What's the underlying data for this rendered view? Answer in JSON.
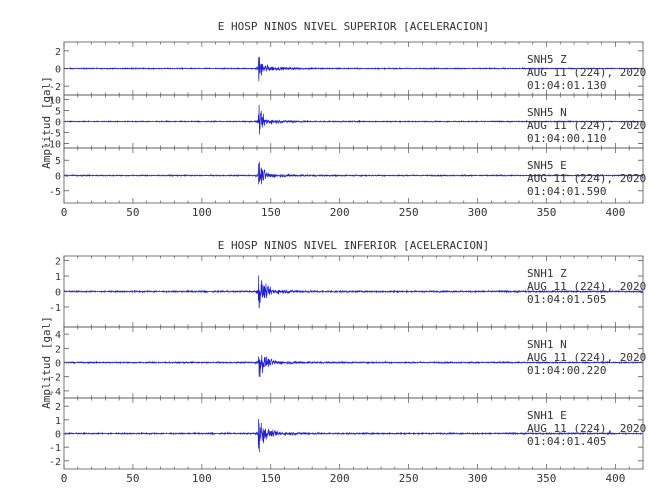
{
  "chart_data": [
    {
      "type": "line",
      "title": "E HOSP NINOS NIVEL SUPERIOR [ACELERACION]",
      "ylabel": "Amplitud [gal]",
      "xlabel": "",
      "xlim": [
        0,
        420
      ],
      "xticks": [
        "0",
        "50",
        "100",
        "150",
        "200",
        "250",
        "300",
        "350",
        "400"
      ],
      "grid": false,
      "series_color": "#1f1fd6",
      "panels": [
        {
          "station": "SNH5   Z",
          "date": "AUG 11 (224), 2020",
          "time": "01:04:01.130",
          "ylim": [
            -3,
            3
          ],
          "yticks": [
            "-2",
            "0",
            "2"
          ],
          "peak": 2.6,
          "noise": 0.09
        },
        {
          "station": "SNH5   N",
          "date": "AUG 11 (224), 2020",
          "time": "01:04:00.110",
          "ylim": [
            -12,
            12
          ],
          "yticks": [
            "-10",
            "-5",
            "0",
            "5",
            "10"
          ],
          "peak": 9.5,
          "noise": 0.35
        },
        {
          "station": "SNH5   E",
          "date": "AUG 11 (224), 2020",
          "time": "01:04:01.590",
          "ylim": [
            -9,
            9
          ],
          "yticks": [
            "-5",
            "0",
            "5"
          ],
          "peak": 7.0,
          "noise": 0.3
        }
      ]
    },
    {
      "type": "line",
      "title": "E HOSP NINOS NIVEL INFERIOR [ACELERACION]",
      "ylabel": "Amplitud [gal]",
      "xlabel": "",
      "xlim": [
        0,
        420
      ],
      "xticks": [
        "0",
        "50",
        "100",
        "150",
        "200",
        "250",
        "300",
        "350",
        "400"
      ],
      "grid": false,
      "series_color": "#1f1fd6",
      "panels": [
        {
          "station": "SNH1   Z",
          "date": "AUG 11 (224), 2020",
          "time": "01:04:01.505",
          "ylim": [
            -2.3,
            2.3
          ],
          "yticks": [
            "-1",
            "0",
            "1",
            "2"
          ],
          "peak": 2.0,
          "noise": 0.08
        },
        {
          "station": "SNH1   N",
          "date": "AUG 11 (224), 2020",
          "time": "01:04:00.220",
          "ylim": [
            -5,
            5
          ],
          "yticks": [
            "-4",
            "-2",
            "0",
            "2",
            "4"
          ],
          "peak": 4.0,
          "noise": 0.15
        },
        {
          "station": "SNH1   E",
          "date": "AUG 11 (224), 2020",
          "time": "01:04:01.405",
          "ylim": [
            -2.6,
            2.6
          ],
          "yticks": [
            "-2",
            "-1",
            "0",
            "1",
            "2"
          ],
          "peak": 2.2,
          "noise": 0.08
        }
      ]
    }
  ]
}
